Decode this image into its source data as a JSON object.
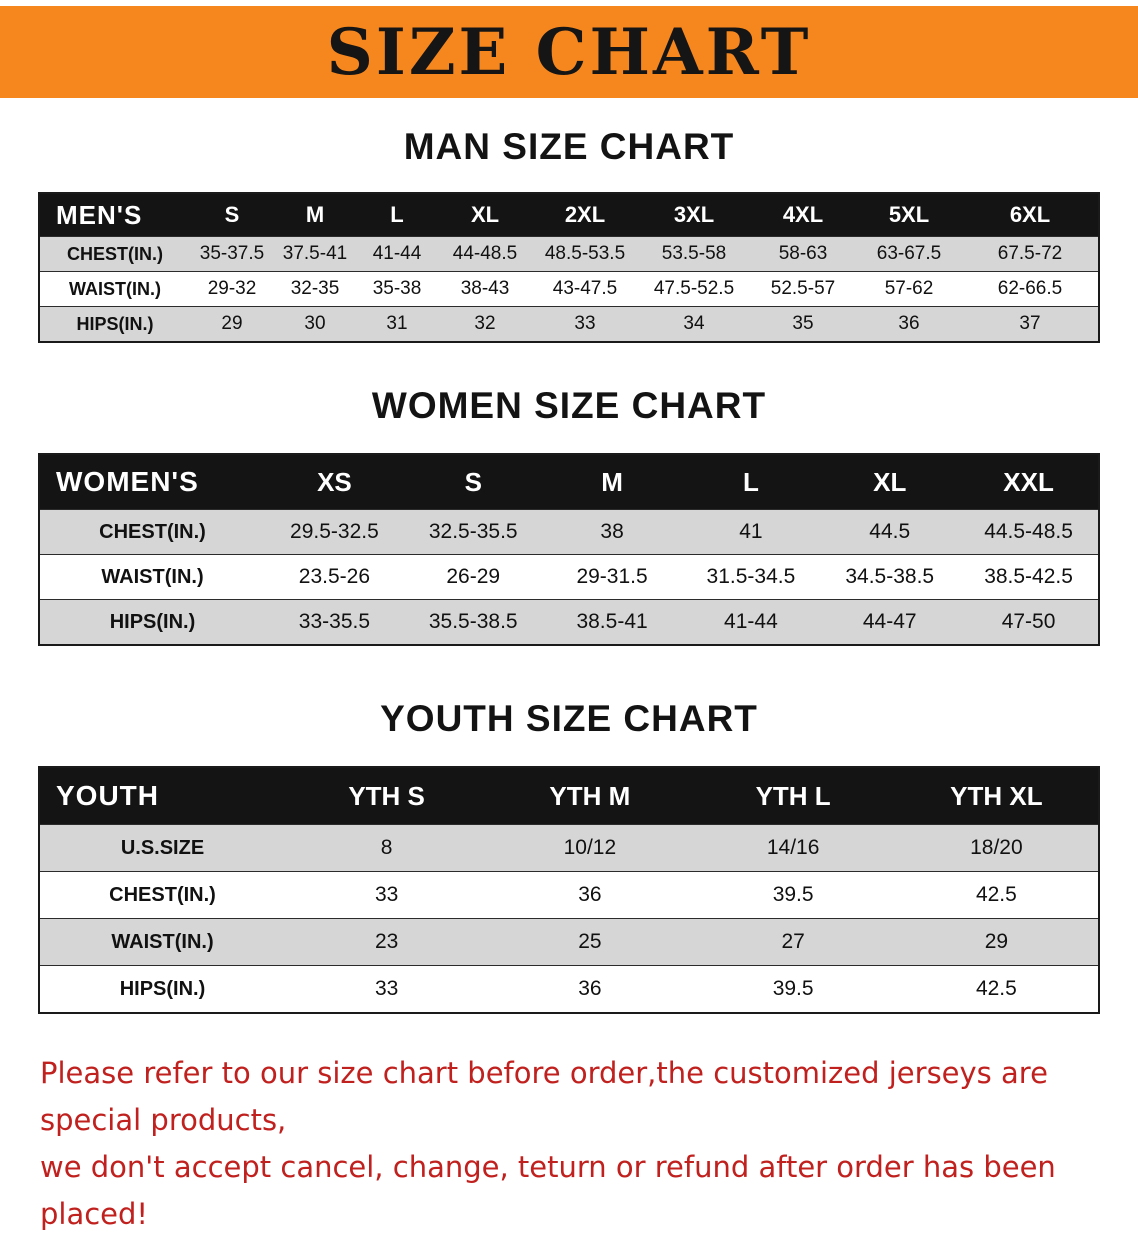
{
  "banner": {
    "title": "SIZE CHART"
  },
  "sections": [
    {
      "heading": "MAN SIZE CHART",
      "header_label": "MEN'S",
      "sizes": [
        "S",
        "M",
        "L",
        "XL",
        "2XL",
        "3XL",
        "4XL",
        "5XL",
        "6XL"
      ],
      "rows": [
        {
          "label": "CHEST(IN.)",
          "values": [
            "35-37.5",
            "37.5-41",
            "41-44",
            "44-48.5",
            "48.5-53.5",
            "53.5-58",
            "58-63",
            "63-67.5",
            "67.5-72"
          ]
        },
        {
          "label": "WAIST(IN.)",
          "values": [
            "29-32",
            "32-35",
            "35-38",
            "38-43",
            "43-47.5",
            "47.5-52.5",
            "52.5-57",
            "57-62",
            "62-66.5"
          ]
        },
        {
          "label": "HIPS(IN.)",
          "values": [
            "29",
            "30",
            "31",
            "32",
            "33",
            "34",
            "35",
            "36",
            "37"
          ]
        }
      ]
    },
    {
      "heading": "WOMEN SIZE CHART",
      "header_label": "WOMEN'S",
      "sizes": [
        "XS",
        "S",
        "M",
        "L",
        "XL",
        "XXL"
      ],
      "rows": [
        {
          "label": "CHEST(IN.)",
          "values": [
            "29.5-32.5",
            "32.5-35.5",
            "38",
            "41",
            "44.5",
            "44.5-48.5"
          ]
        },
        {
          "label": "WAIST(IN.)",
          "values": [
            "23.5-26",
            "26-29",
            "29-31.5",
            "31.5-34.5",
            "34.5-38.5",
            "38.5-42.5"
          ]
        },
        {
          "label": "HIPS(IN.)",
          "values": [
            "33-35.5",
            "35.5-38.5",
            "38.5-41",
            "41-44",
            "44-47",
            "47-50"
          ]
        }
      ]
    },
    {
      "heading": "YOUTH SIZE CHART",
      "header_label": "YOUTH",
      "sizes": [
        "YTH S",
        "YTH M",
        "YTH L",
        "YTH XL"
      ],
      "rows": [
        {
          "label": "U.S.SIZE",
          "values": [
            "8",
            "10/12",
            "14/16",
            "18/20"
          ]
        },
        {
          "label": "CHEST(IN.)",
          "values": [
            "33",
            "36",
            "39.5",
            "42.5"
          ]
        },
        {
          "label": "WAIST(IN.)",
          "values": [
            "23",
            "25",
            "27",
            "29"
          ]
        },
        {
          "label": "HIPS(IN.)",
          "values": [
            "33",
            "36",
            "39.5",
            "42.5"
          ]
        }
      ]
    }
  ],
  "footer": {
    "line1": "Please refer to our size chart before order,the customized jerseys are special products,",
    "line2": "we don't accept cancel, change, teturn or refund after order has been placed!"
  },
  "colors": {
    "banner_bg": "#F6871F",
    "table_header_bg": "#141414",
    "stripe_gray": "#d6d6d6",
    "footer_text": "#c0211e"
  }
}
